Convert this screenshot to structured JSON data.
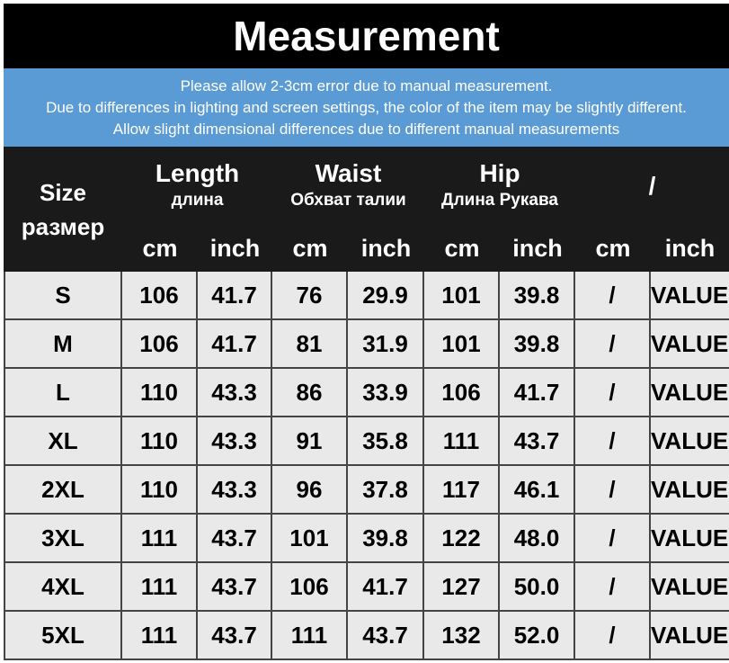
{
  "title": "Measurement",
  "notes": [
    "Please allow 2-3cm error due to manual measurement.",
    "Due to differences in lighting and screen settings, the color of the item may be slightly different.",
    "Allow slight dimensional differences due to different manual measurements"
  ],
  "header": {
    "size": [
      "Size",
      "размер"
    ],
    "groups": [
      {
        "name": "Length",
        "sub": "длина"
      },
      {
        "name": "Waist",
        "sub": "Обхват талии"
      },
      {
        "name": "Hip",
        "sub": "Длина Рукава"
      },
      {
        "name": "/"
      }
    ],
    "units": [
      "cm",
      "inch",
      "cm",
      "inch",
      "cm",
      "inch",
      "cm",
      "inch"
    ]
  },
  "table": {
    "rows": [
      [
        "S",
        "106",
        "41.7",
        "76",
        "29.9",
        "101",
        "39.8",
        "/",
        "VALUE"
      ],
      [
        "M",
        "106",
        "41.7",
        "81",
        "31.9",
        "101",
        "39.8",
        "/",
        "VALUE"
      ],
      [
        "L",
        "110",
        "43.3",
        "86",
        "33.9",
        "106",
        "41.7",
        "/",
        "VALUE"
      ],
      [
        "XL",
        "110",
        "43.3",
        "91",
        "35.8",
        "111",
        "43.7",
        "/",
        "VALUE"
      ],
      [
        "2XL",
        "110",
        "43.3",
        "96",
        "37.8",
        "117",
        "46.1",
        "/",
        "VALUE"
      ],
      [
        "3XL",
        "111",
        "43.7",
        "101",
        "39.8",
        "122",
        "48.0",
        "/",
        "VALUE"
      ],
      [
        "4XL",
        "111",
        "43.7",
        "106",
        "41.7",
        "127",
        "50.0",
        "/",
        "VALUE"
      ],
      [
        "5XL",
        "111",
        "43.7",
        "111",
        "43.7",
        "132",
        "52.0",
        "/",
        "VALUE"
      ]
    ]
  }
}
